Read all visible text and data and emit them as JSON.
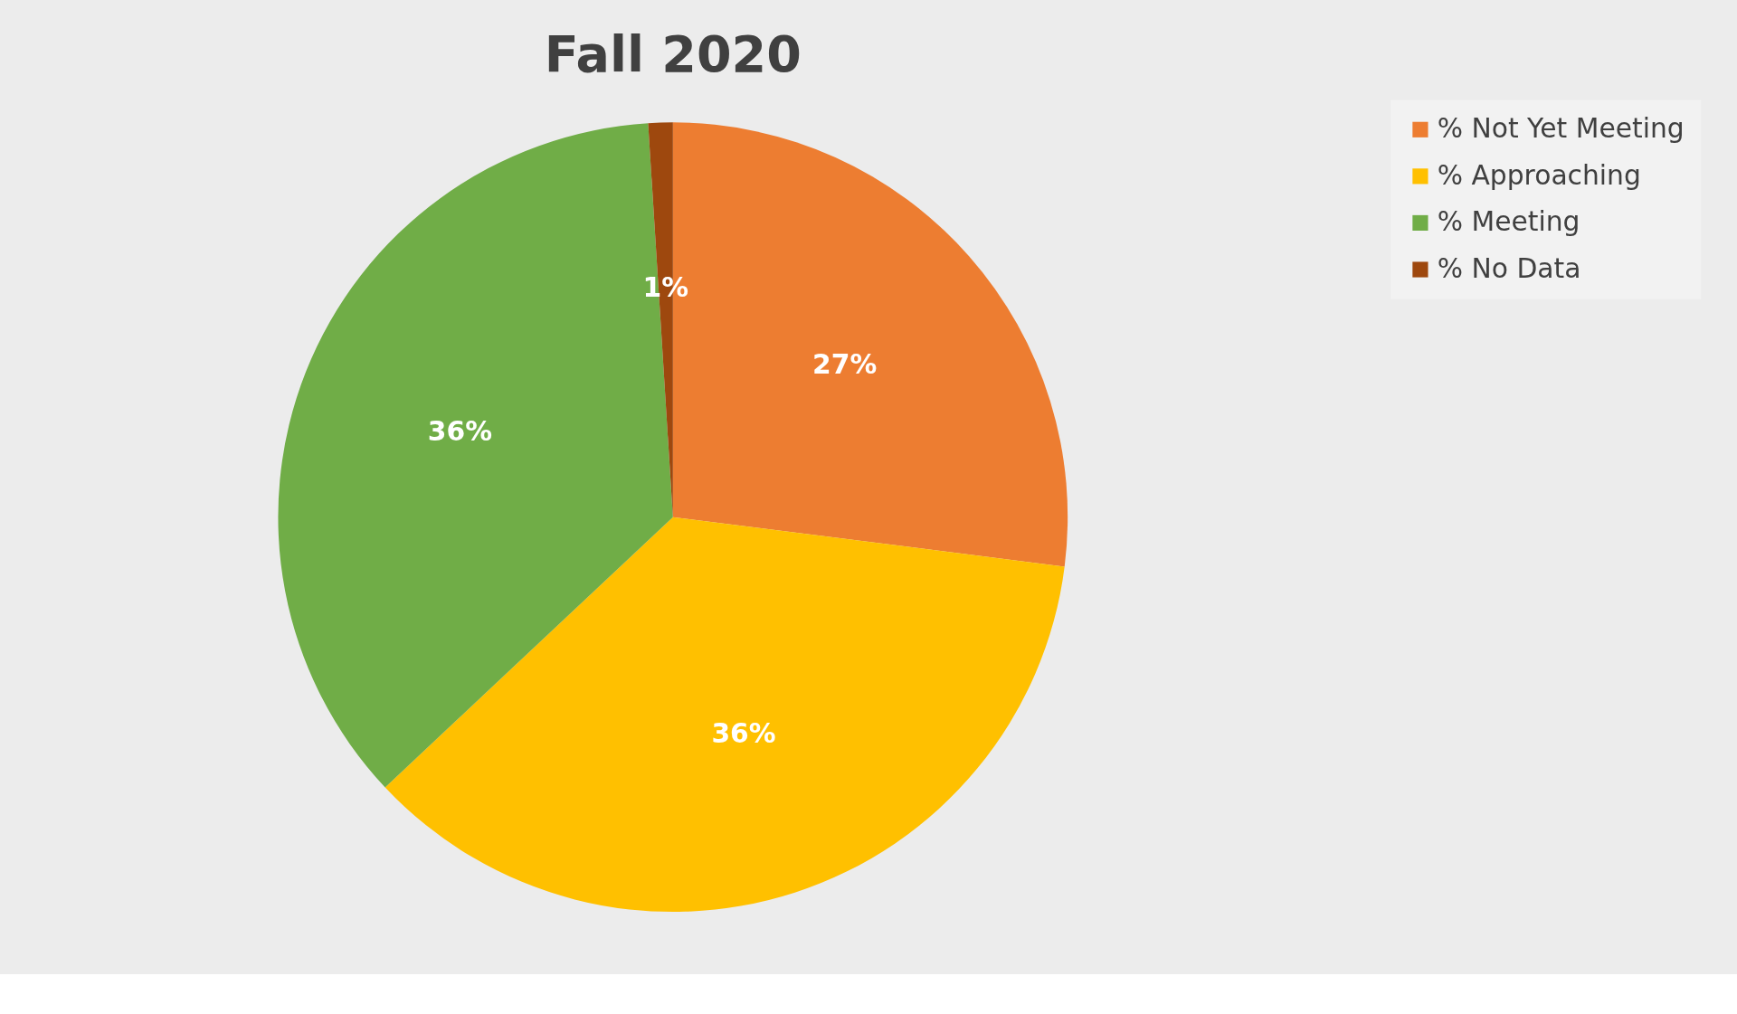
{
  "chart_data": {
    "type": "pie",
    "title": "Fall 2020",
    "categories": [
      "% Not Yet Meeting",
      "% Approaching",
      "% Meeting",
      "% No Data"
    ],
    "values": [
      27,
      36,
      36,
      1
    ],
    "colors": [
      "#ed7d31",
      "#ffc000",
      "#70ad47",
      "#9e480e"
    ],
    "value_labels": [
      "27%",
      "36%",
      "36%",
      "1%"
    ],
    "legend": "right"
  }
}
